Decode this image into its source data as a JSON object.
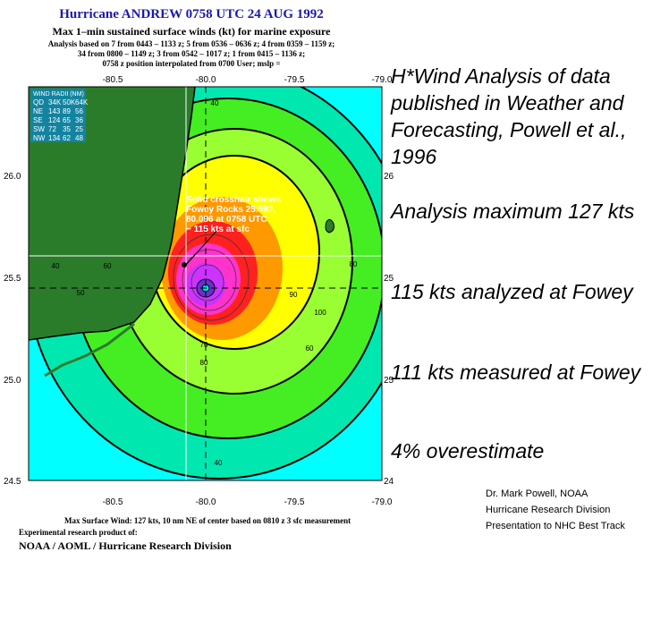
{
  "header": {
    "title": "Hurricane ANDREW 0758 UTC 24 AUG 1992",
    "subtitle": "Max 1–min sustained surface winds (kt) for marine exposure",
    "analysis_lines": [
      "Analysis based on  7 from 0443 – 1133 z;  5 from 0536 – 0636 z;  4 from 0359 – 1159 z;",
      "34 from 0800 – 1149 z;  3 from 0542 – 1017 z;  1 from 0415 – 1136 z;",
      "0758 z position interpolated from 0700 User; mslp ="
    ]
  },
  "map": {
    "lon_ticks": [
      "-80.5",
      "-80.0",
      "-79.5",
      "-79.0"
    ],
    "lat_ticks": [
      "26.0",
      "25.5",
      "25.0",
      "24.5"
    ],
    "wind_radii": {
      "title": "WIND RADII (NM)",
      "header": [
        "QD",
        "34K",
        "50K",
        "64K"
      ],
      "rows": [
        [
          "NE",
          "143",
          "89",
          "56"
        ],
        [
          "SE",
          "124",
          "65",
          "36"
        ],
        [
          "SW",
          "72",
          "35",
          "25"
        ],
        [
          "NW",
          "134",
          "62",
          "48"
        ]
      ]
    },
    "crosshair_annotation": [
      "Solid crosshair shows",
      "Fowey Rocks 25.592,",
      "80.096 at 0758 UTC",
      "~ 115 kts at sfc"
    ],
    "contour_labels": [
      "40",
      "40",
      "50",
      "60",
      "60",
      "70",
      "80",
      "80",
      "90",
      "100",
      "40"
    ],
    "colors": {
      "band_cyan": "#00ffff",
      "band_aqua": "#00e8b0",
      "band_green": "#44ee22",
      "band_yellow": "#ffff00",
      "band_orange": "#ff9900",
      "band_red": "#ff2020",
      "band_pink": "#ff33cc",
      "band_purple": "#cc33ff",
      "land": "#2a7c2a"
    }
  },
  "footer": {
    "max_surface_wind": "Max Surface Wind: 127 kts, 10 nm NE of center based on 0810 z 3 sfc measurement",
    "experimental": "Experimental research product of:",
    "org": "NOAA / AOML / Hurricane Research Division"
  },
  "notes": [
    "H*Wind Analysis of data published in Weather and Forecasting, Powell et al., 1996",
    "Analysis maximum 127 kts",
    "115 kts analyzed at Fowey",
    "111 kts measured at Fowey",
    "4% overestimate"
  ],
  "credit": [
    "Dr. Mark Powell, NOAA",
    "Hurricane Research Division",
    "Presentation to NHC Best Track"
  ]
}
